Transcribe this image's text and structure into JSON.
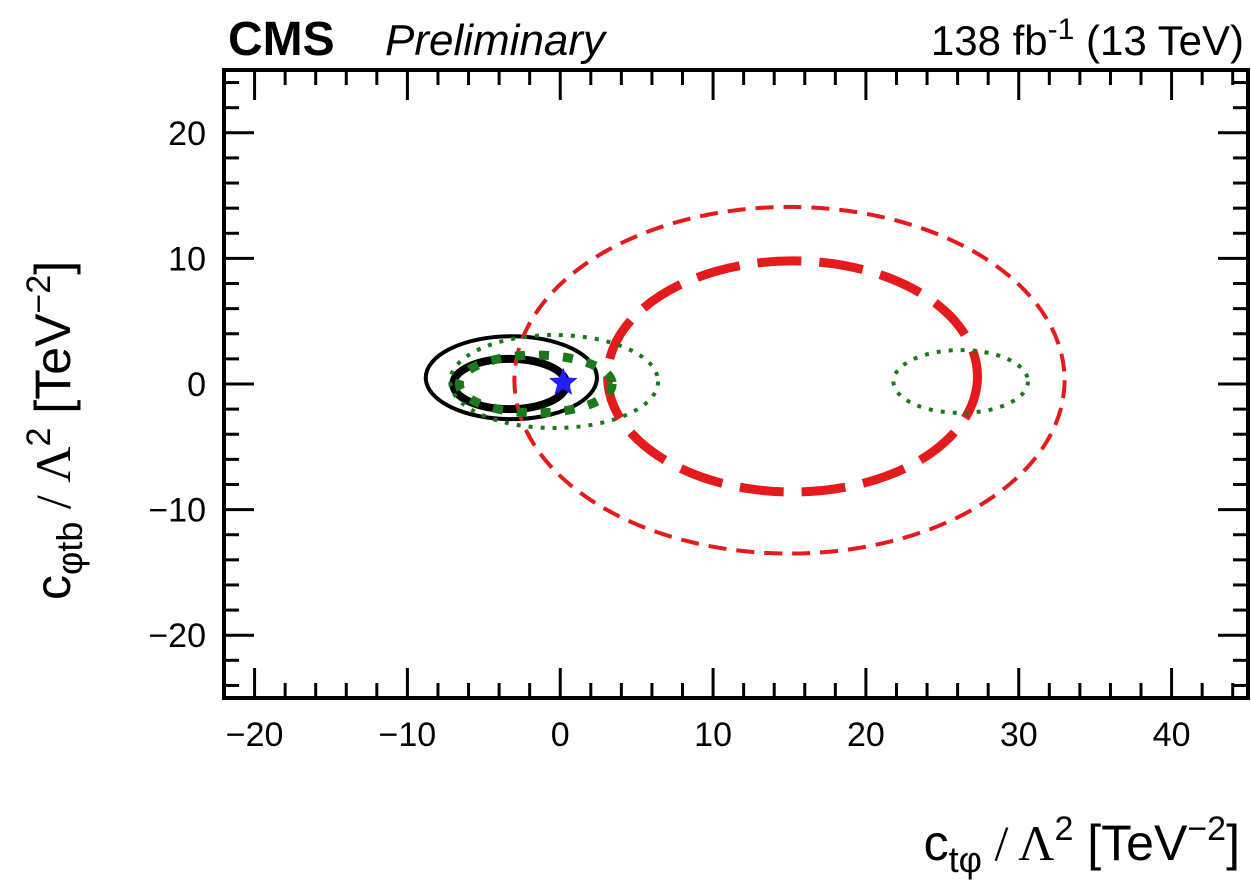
{
  "header": {
    "experiment": "CMS",
    "status": "Preliminary",
    "lumi_value": "138",
    "lumi_unit": "fb",
    "lumi_exponent": "-1",
    "energy": "(13 TeV)"
  },
  "chart_data": {
    "type": "contour",
    "xlabel": {
      "base": "c",
      "subscript": "tφ",
      "separator": " / ",
      "scale": "Λ",
      "scale_exp": "2",
      "unit": "[TeV",
      "unit_exp": "−2",
      "unit_close": "]"
    },
    "ylabel": {
      "base": "c",
      "subscript": "φtb",
      "separator": " / ",
      "scale": "Λ",
      "scale_exp": "2",
      "unit": "[TeV",
      "unit_exp": "−2",
      "unit_close": "]"
    },
    "xlim": [
      -22,
      45
    ],
    "ylim": [
      -25,
      25
    ],
    "xticks": [
      {
        "value": -20,
        "label": "−20"
      },
      {
        "value": -10,
        "label": "−10"
      },
      {
        "value": 0,
        "label": "0"
      },
      {
        "value": 10,
        "label": "10"
      },
      {
        "value": 20,
        "label": "20"
      },
      {
        "value": 30,
        "label": "30"
      },
      {
        "value": 40,
        "label": "40"
      }
    ],
    "yticks": [
      {
        "value": -20,
        "label": "−20"
      },
      {
        "value": -10,
        "label": "−10"
      },
      {
        "value": 0,
        "label": "0"
      },
      {
        "value": 10,
        "label": "10"
      },
      {
        "value": 20,
        "label": "20"
      }
    ],
    "colors": {
      "black": "#000000",
      "red": "#e41a1c",
      "green": "#1a7a1a",
      "blue": "#1f1fff"
    },
    "contours": [
      {
        "name": "black-outer",
        "color": "black",
        "style": "solid",
        "width": 4,
        "cx": -3.2,
        "cy": 0.5,
        "rx": 5.6,
        "ry": 3.3
      },
      {
        "name": "black-inner",
        "color": "black",
        "style": "solid",
        "width": 8,
        "cx": -3.3,
        "cy": 0.0,
        "rx": 3.7,
        "ry": 2.0
      },
      {
        "name": "red-outer",
        "color": "red",
        "style": "dashed",
        "width": 4,
        "cx": 15.0,
        "cy": 0.3,
        "rx": 18.0,
        "ry": 13.8
      },
      {
        "name": "red-inner",
        "color": "red",
        "style": "dashed-thick",
        "width": 9,
        "cx": 15.2,
        "cy": 0.6,
        "rx": 12.1,
        "ry": 9.2
      },
      {
        "name": "green-outer-left",
        "color": "green",
        "style": "dotted",
        "width": 4,
        "cx": -0.4,
        "cy": 0.2,
        "rx": 6.8,
        "ry": 3.7
      },
      {
        "name": "green-inner-left",
        "color": "green",
        "style": "dotted-thick",
        "width": 9,
        "cx": -1.6,
        "cy": 0.0,
        "rx": 5.0,
        "ry": 2.3
      },
      {
        "name": "green-outer-right",
        "color": "green",
        "style": "dotted",
        "width": 4,
        "cx": 26.2,
        "cy": 0.2,
        "rx": 4.4,
        "ry": 2.5
      }
    ],
    "best_fit": {
      "x": 0.2,
      "y": 0.1,
      "marker": "star",
      "color": "blue"
    }
  }
}
